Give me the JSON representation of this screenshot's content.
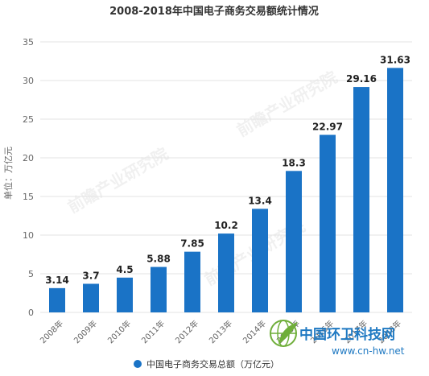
{
  "chart_data": {
    "type": "bar",
    "title": "2008-2018年中国电子商务交易额统计情况",
    "ylabel": "单位：万亿元",
    "categories": [
      "2008年",
      "2009年",
      "2010年",
      "2011年",
      "2012年",
      "2013年",
      "2014年",
      "2015年",
      "2016年",
      "2017年",
      "2018年"
    ],
    "series": [
      {
        "name": "中国电子商务交易总额（万亿元）",
        "values": [
          3.14,
          3.7,
          4.5,
          5.88,
          7.85,
          10.2,
          13.4,
          18.3,
          22.97,
          29.16,
          31.63
        ],
        "value_labels": [
          "3.14",
          "3.7",
          "4.5",
          "5.88",
          "7.85",
          "10.2",
          "13.4",
          "18.3",
          "22.97",
          "29.16",
          "31.63"
        ]
      }
    ],
    "ylim": [
      0,
      35
    ],
    "yticks": [
      0,
      5,
      10,
      15,
      20,
      25,
      30,
      35
    ],
    "grid": true,
    "legend_position": "bottom",
    "colors": {
      "bar": "#1a73c6",
      "legend_marker": "#1a73c6"
    }
  },
  "watermarks": {
    "source_mark": "前瞻产业研究院",
    "site_name": "中国环卫科技网",
    "site_url": "www.cn-hw.net"
  }
}
